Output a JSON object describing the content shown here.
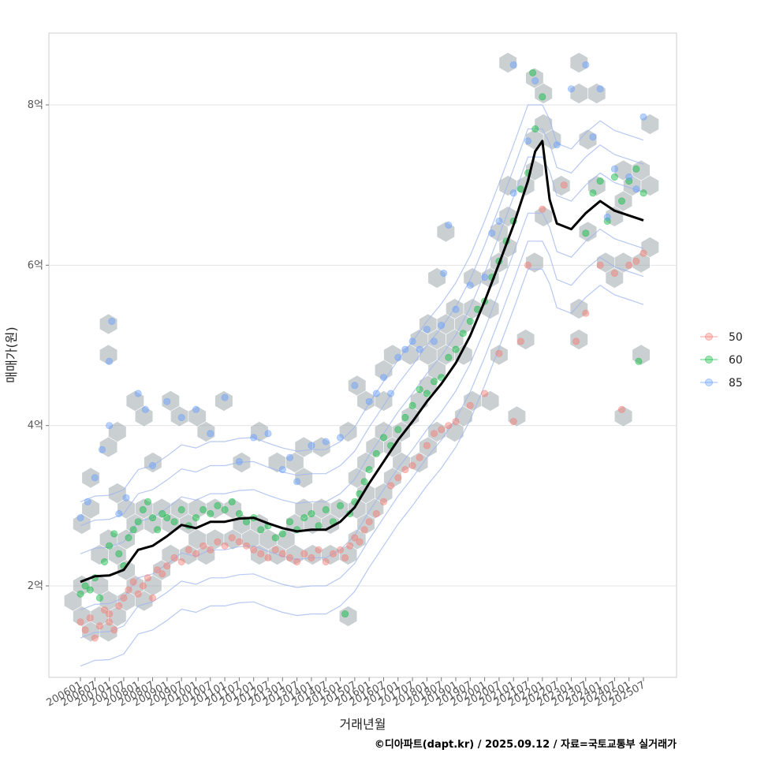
{
  "caption": "©디아파트(dapt.kr) / 2025.09.12 / 자료=국토교통부 실거래가",
  "chart_data": {
    "type": "scatter",
    "xlabel": "거래년월",
    "ylabel": "매매가(원)",
    "x_range": [
      "2006-01",
      "2025-07"
    ],
    "ylim": [
      1.0,
      8.8
    ],
    "y_ticks": [
      2,
      4,
      6,
      8
    ],
    "y_tick_labels": [
      "2억",
      "4억",
      "6억",
      "8억"
    ],
    "x_tick_labels": [
      "200601",
      "200607",
      "200701",
      "200707",
      "200801",
      "200807",
      "200901",
      "200907",
      "201001",
      "201007",
      "201101",
      "201107",
      "201201",
      "201207",
      "201301",
      "201307",
      "201401",
      "201407",
      "201501",
      "201507",
      "201601",
      "201607",
      "201701",
      "201707",
      "201801",
      "201807",
      "201901",
      "201907",
      "202001",
      "202007",
      "202101",
      "202107",
      "202201",
      "202207",
      "202301",
      "202307",
      "202401",
      "202407",
      "202501",
      "202507"
    ],
    "grid": true,
    "legend_position": "right",
    "legend": [
      {
        "name": "50",
        "color": "#F8766D"
      },
      {
        "name": "60",
        "color": "#00BA38"
      },
      {
        "name": "85",
        "color": "#619CFF"
      }
    ],
    "hexbin_color": "#9ea7ad",
    "contour_color": "#9fb5ee",
    "trend_color": "#000000",
    "trend": [
      [
        "2006-01",
        2.05
      ],
      [
        "2006-07",
        2.12
      ],
      [
        "2007-01",
        2.13
      ],
      [
        "2007-07",
        2.2
      ],
      [
        "2008-01",
        2.45
      ],
      [
        "2008-07",
        2.5
      ],
      [
        "2009-01",
        2.62
      ],
      [
        "2009-07",
        2.76
      ],
      [
        "2010-01",
        2.72
      ],
      [
        "2010-07",
        2.8
      ],
      [
        "2011-01",
        2.8
      ],
      [
        "2011-07",
        2.84
      ],
      [
        "2012-01",
        2.85
      ],
      [
        "2012-07",
        2.78
      ],
      [
        "2013-01",
        2.72
      ],
      [
        "2013-07",
        2.68
      ],
      [
        "2014-01",
        2.7
      ],
      [
        "2014-07",
        2.7
      ],
      [
        "2015-01",
        2.8
      ],
      [
        "2015-07",
        2.98
      ],
      [
        "2016-01",
        3.28
      ],
      [
        "2016-07",
        3.55
      ],
      [
        "2017-01",
        3.82
      ],
      [
        "2017-07",
        4.05
      ],
      [
        "2018-01",
        4.3
      ],
      [
        "2018-07",
        4.52
      ],
      [
        "2019-01",
        4.78
      ],
      [
        "2019-07",
        5.12
      ],
      [
        "2020-01",
        5.55
      ],
      [
        "2020-07",
        6.02
      ],
      [
        "2021-01",
        6.5
      ],
      [
        "2021-07",
        7.05
      ],
      [
        "2021-10",
        7.42
      ],
      [
        "2022-01",
        7.55
      ],
      [
        "2022-04",
        6.82
      ],
      [
        "2022-07",
        6.52
      ],
      [
        "2023-01",
        6.45
      ],
      [
        "2023-07",
        6.65
      ],
      [
        "2024-01",
        6.8
      ],
      [
        "2024-07",
        6.68
      ],
      [
        "2025-01",
        6.62
      ],
      [
        "2025-07",
        6.56
      ]
    ],
    "series": [
      {
        "name": "50",
        "points": [
          [
            "2006-01",
            1.55
          ],
          [
            "2006-03",
            1.45
          ],
          [
            "2006-05",
            1.6
          ],
          [
            "2006-07",
            1.35
          ],
          [
            "2006-09",
            1.5
          ],
          [
            "2006-11",
            1.7
          ],
          [
            "2007-01",
            1.65
          ],
          [
            "2007-01",
            1.55
          ],
          [
            "2007-03",
            1.45
          ],
          [
            "2007-05",
            1.75
          ],
          [
            "2007-07",
            1.85
          ],
          [
            "2007-09",
            1.95
          ],
          [
            "2007-11",
            2.05
          ],
          [
            "2008-01",
            1.9
          ],
          [
            "2008-03",
            2.0
          ],
          [
            "2008-05",
            2.1
          ],
          [
            "2008-07",
            1.85
          ],
          [
            "2008-09",
            2.2
          ],
          [
            "2008-11",
            2.15
          ],
          [
            "2009-01",
            2.25
          ],
          [
            "2009-04",
            2.35
          ],
          [
            "2009-07",
            2.3
          ],
          [
            "2009-10",
            2.45
          ],
          [
            "2010-01",
            2.4
          ],
          [
            "2010-04",
            2.5
          ],
          [
            "2010-07",
            2.45
          ],
          [
            "2010-10",
            2.55
          ],
          [
            "2011-01",
            2.5
          ],
          [
            "2011-04",
            2.6
          ],
          [
            "2011-07",
            2.55
          ],
          [
            "2011-10",
            2.5
          ],
          [
            "2012-01",
            2.45
          ],
          [
            "2012-04",
            2.4
          ],
          [
            "2012-07",
            2.35
          ],
          [
            "2012-10",
            2.45
          ],
          [
            "2013-01",
            2.4
          ],
          [
            "2013-04",
            2.35
          ],
          [
            "2013-07",
            2.3
          ],
          [
            "2013-10",
            2.4
          ],
          [
            "2014-01",
            2.35
          ],
          [
            "2014-04",
            2.45
          ],
          [
            "2014-07",
            2.3
          ],
          [
            "2014-10",
            2.4
          ],
          [
            "2015-01",
            2.45
          ],
          [
            "2015-03",
            2.35
          ],
          [
            "2015-05",
            2.5
          ],
          [
            "2015-07",
            2.6
          ],
          [
            "2015-09",
            2.55
          ],
          [
            "2015-11",
            2.7
          ],
          [
            "2016-01",
            2.8
          ],
          [
            "2016-04",
            2.9
          ],
          [
            "2016-07",
            3.05
          ],
          [
            "2016-10",
            3.25
          ],
          [
            "2017-01",
            3.35
          ],
          [
            "2017-04",
            3.45
          ],
          [
            "2017-07",
            3.5
          ],
          [
            "2017-10",
            3.6
          ],
          [
            "2018-01",
            3.75
          ],
          [
            "2018-04",
            3.9
          ],
          [
            "2018-07",
            3.95
          ],
          [
            "2018-10",
            4.0
          ],
          [
            "2019-01",
            4.05
          ],
          [
            "2019-07",
            4.25
          ],
          [
            "2020-01",
            4.4
          ],
          [
            "2020-07",
            4.9
          ],
          [
            "2021-01",
            4.05
          ],
          [
            "2021-04",
            5.05
          ],
          [
            "2021-07",
            6.0
          ],
          [
            "2022-01",
            6.7
          ],
          [
            "2022-10",
            7.0
          ],
          [
            "2023-03",
            5.05
          ],
          [
            "2023-07",
            5.4
          ],
          [
            "2024-01",
            6.0
          ],
          [
            "2024-07",
            5.9
          ],
          [
            "2025-01",
            6.0
          ],
          [
            "2025-04",
            6.05
          ],
          [
            "2025-07",
            6.15
          ],
          [
            "2024-10",
            4.2
          ]
        ]
      },
      {
        "name": "60",
        "points": [
          [
            "2006-01",
            1.9
          ],
          [
            "2006-03",
            2.0
          ],
          [
            "2006-05",
            1.95
          ],
          [
            "2006-07",
            2.1
          ],
          [
            "2006-09",
            1.85
          ],
          [
            "2006-11",
            2.3
          ],
          [
            "2007-01",
            2.5
          ],
          [
            "2007-03",
            2.65
          ],
          [
            "2007-05",
            2.4
          ],
          [
            "2007-07",
            2.25
          ],
          [
            "2007-09",
            2.6
          ],
          [
            "2007-11",
            2.7
          ],
          [
            "2008-01",
            2.8
          ],
          [
            "2008-03",
            2.95
          ],
          [
            "2008-05",
            3.05
          ],
          [
            "2008-07",
            2.85
          ],
          [
            "2008-09",
            2.7
          ],
          [
            "2008-11",
            2.9
          ],
          [
            "2009-01",
            2.85
          ],
          [
            "2009-04",
            2.8
          ],
          [
            "2009-07",
            2.95
          ],
          [
            "2009-10",
            2.75
          ],
          [
            "2010-01",
            2.85
          ],
          [
            "2010-04",
            2.95
          ],
          [
            "2010-07",
            2.9
          ],
          [
            "2010-10",
            3.0
          ],
          [
            "2011-01",
            2.95
          ],
          [
            "2011-04",
            3.05
          ],
          [
            "2011-07",
            2.9
          ],
          [
            "2011-10",
            2.8
          ],
          [
            "2012-01",
            2.85
          ],
          [
            "2012-04",
            2.7
          ],
          [
            "2012-07",
            2.75
          ],
          [
            "2012-10",
            2.6
          ],
          [
            "2013-01",
            2.65
          ],
          [
            "2013-04",
            2.8
          ],
          [
            "2013-07",
            2.7
          ],
          [
            "2013-10",
            2.85
          ],
          [
            "2014-01",
            2.9
          ],
          [
            "2014-04",
            2.75
          ],
          [
            "2014-07",
            2.95
          ],
          [
            "2014-10",
            2.8
          ],
          [
            "2015-01",
            3.0
          ],
          [
            "2015-03",
            1.65
          ],
          [
            "2015-05",
            2.9
          ],
          [
            "2015-07",
            3.05
          ],
          [
            "2015-09",
            3.15
          ],
          [
            "2015-11",
            3.3
          ],
          [
            "2016-01",
            3.45
          ],
          [
            "2016-04",
            3.65
          ],
          [
            "2016-07",
            3.85
          ],
          [
            "2016-10",
            3.75
          ],
          [
            "2017-01",
            3.95
          ],
          [
            "2017-04",
            4.1
          ],
          [
            "2017-07",
            4.25
          ],
          [
            "2017-10",
            4.45
          ],
          [
            "2018-01",
            4.4
          ],
          [
            "2018-04",
            4.55
          ],
          [
            "2018-07",
            4.6
          ],
          [
            "2018-10",
            4.85
          ],
          [
            "2019-01",
            4.95
          ],
          [
            "2019-04",
            5.15
          ],
          [
            "2019-07",
            5.3
          ],
          [
            "2019-10",
            5.45
          ],
          [
            "2020-01",
            5.55
          ],
          [
            "2020-04",
            5.85
          ],
          [
            "2020-07",
            6.05
          ],
          [
            "2020-10",
            6.3
          ],
          [
            "2021-01",
            6.55
          ],
          [
            "2021-04",
            6.95
          ],
          [
            "2021-07",
            7.15
          ],
          [
            "2021-10",
            7.7
          ],
          [
            "2022-01",
            8.1
          ],
          [
            "2021-09",
            8.4
          ],
          [
            "2023-07",
            6.4
          ],
          [
            "2023-10",
            6.9
          ],
          [
            "2024-01",
            7.05
          ],
          [
            "2024-04",
            6.55
          ],
          [
            "2024-07",
            7.1
          ],
          [
            "2024-10",
            6.8
          ],
          [
            "2025-01",
            7.05
          ],
          [
            "2025-04",
            7.2
          ],
          [
            "2025-07",
            6.9
          ],
          [
            "2025-05",
            4.8
          ]
        ]
      },
      {
        "name": "85",
        "points": [
          [
            "2006-01",
            2.85
          ],
          [
            "2006-04",
            3.05
          ],
          [
            "2006-07",
            3.35
          ],
          [
            "2006-10",
            3.7
          ],
          [
            "2007-01",
            4.0
          ],
          [
            "2007-01",
            4.8
          ],
          [
            "2007-02",
            5.3
          ],
          [
            "2007-05",
            2.9
          ],
          [
            "2007-08",
            3.1
          ],
          [
            "2008-01",
            4.4
          ],
          [
            "2008-04",
            4.2
          ],
          [
            "2008-07",
            3.5
          ],
          [
            "2009-01",
            4.3
          ],
          [
            "2009-07",
            4.1
          ],
          [
            "2010-01",
            4.2
          ],
          [
            "2010-07",
            3.9
          ],
          [
            "2011-01",
            4.35
          ],
          [
            "2011-07",
            3.55
          ],
          [
            "2012-01",
            3.85
          ],
          [
            "2012-07",
            3.9
          ],
          [
            "2013-01",
            3.45
          ],
          [
            "2013-04",
            3.6
          ],
          [
            "2013-07",
            3.3
          ],
          [
            "2014-01",
            3.75
          ],
          [
            "2014-07",
            3.8
          ],
          [
            "2015-01",
            3.85
          ],
          [
            "2015-07",
            4.5
          ],
          [
            "2016-01",
            4.3
          ],
          [
            "2016-04",
            4.4
          ],
          [
            "2016-07",
            4.6
          ],
          [
            "2016-10",
            4.4
          ],
          [
            "2017-01",
            4.85
          ],
          [
            "2017-04",
            4.95
          ],
          [
            "2017-07",
            5.05
          ],
          [
            "2017-10",
            4.95
          ],
          [
            "2018-01",
            5.2
          ],
          [
            "2018-04",
            5.05
          ],
          [
            "2018-07",
            5.25
          ],
          [
            "2018-10",
            6.5
          ],
          [
            "2018-08",
            5.9
          ],
          [
            "2019-01",
            5.45
          ],
          [
            "2019-07",
            5.75
          ],
          [
            "2020-01",
            5.85
          ],
          [
            "2020-04",
            6.4
          ],
          [
            "2020-07",
            6.55
          ],
          [
            "2021-01",
            6.9
          ],
          [
            "2021-07",
            7.55
          ],
          [
            "2021-10",
            8.3
          ],
          [
            "2021-01",
            8.5
          ],
          [
            "2022-07",
            7.5
          ],
          [
            "2023-01",
            8.2
          ],
          [
            "2023-07",
            8.5
          ],
          [
            "2023-10",
            7.6
          ],
          [
            "2024-01",
            8.2
          ],
          [
            "2024-04",
            6.6
          ],
          [
            "2024-07",
            7.2
          ],
          [
            "2025-01",
            7.1
          ],
          [
            "2025-07",
            7.85
          ],
          [
            "2025-04",
            6.95
          ]
        ]
      }
    ]
  }
}
